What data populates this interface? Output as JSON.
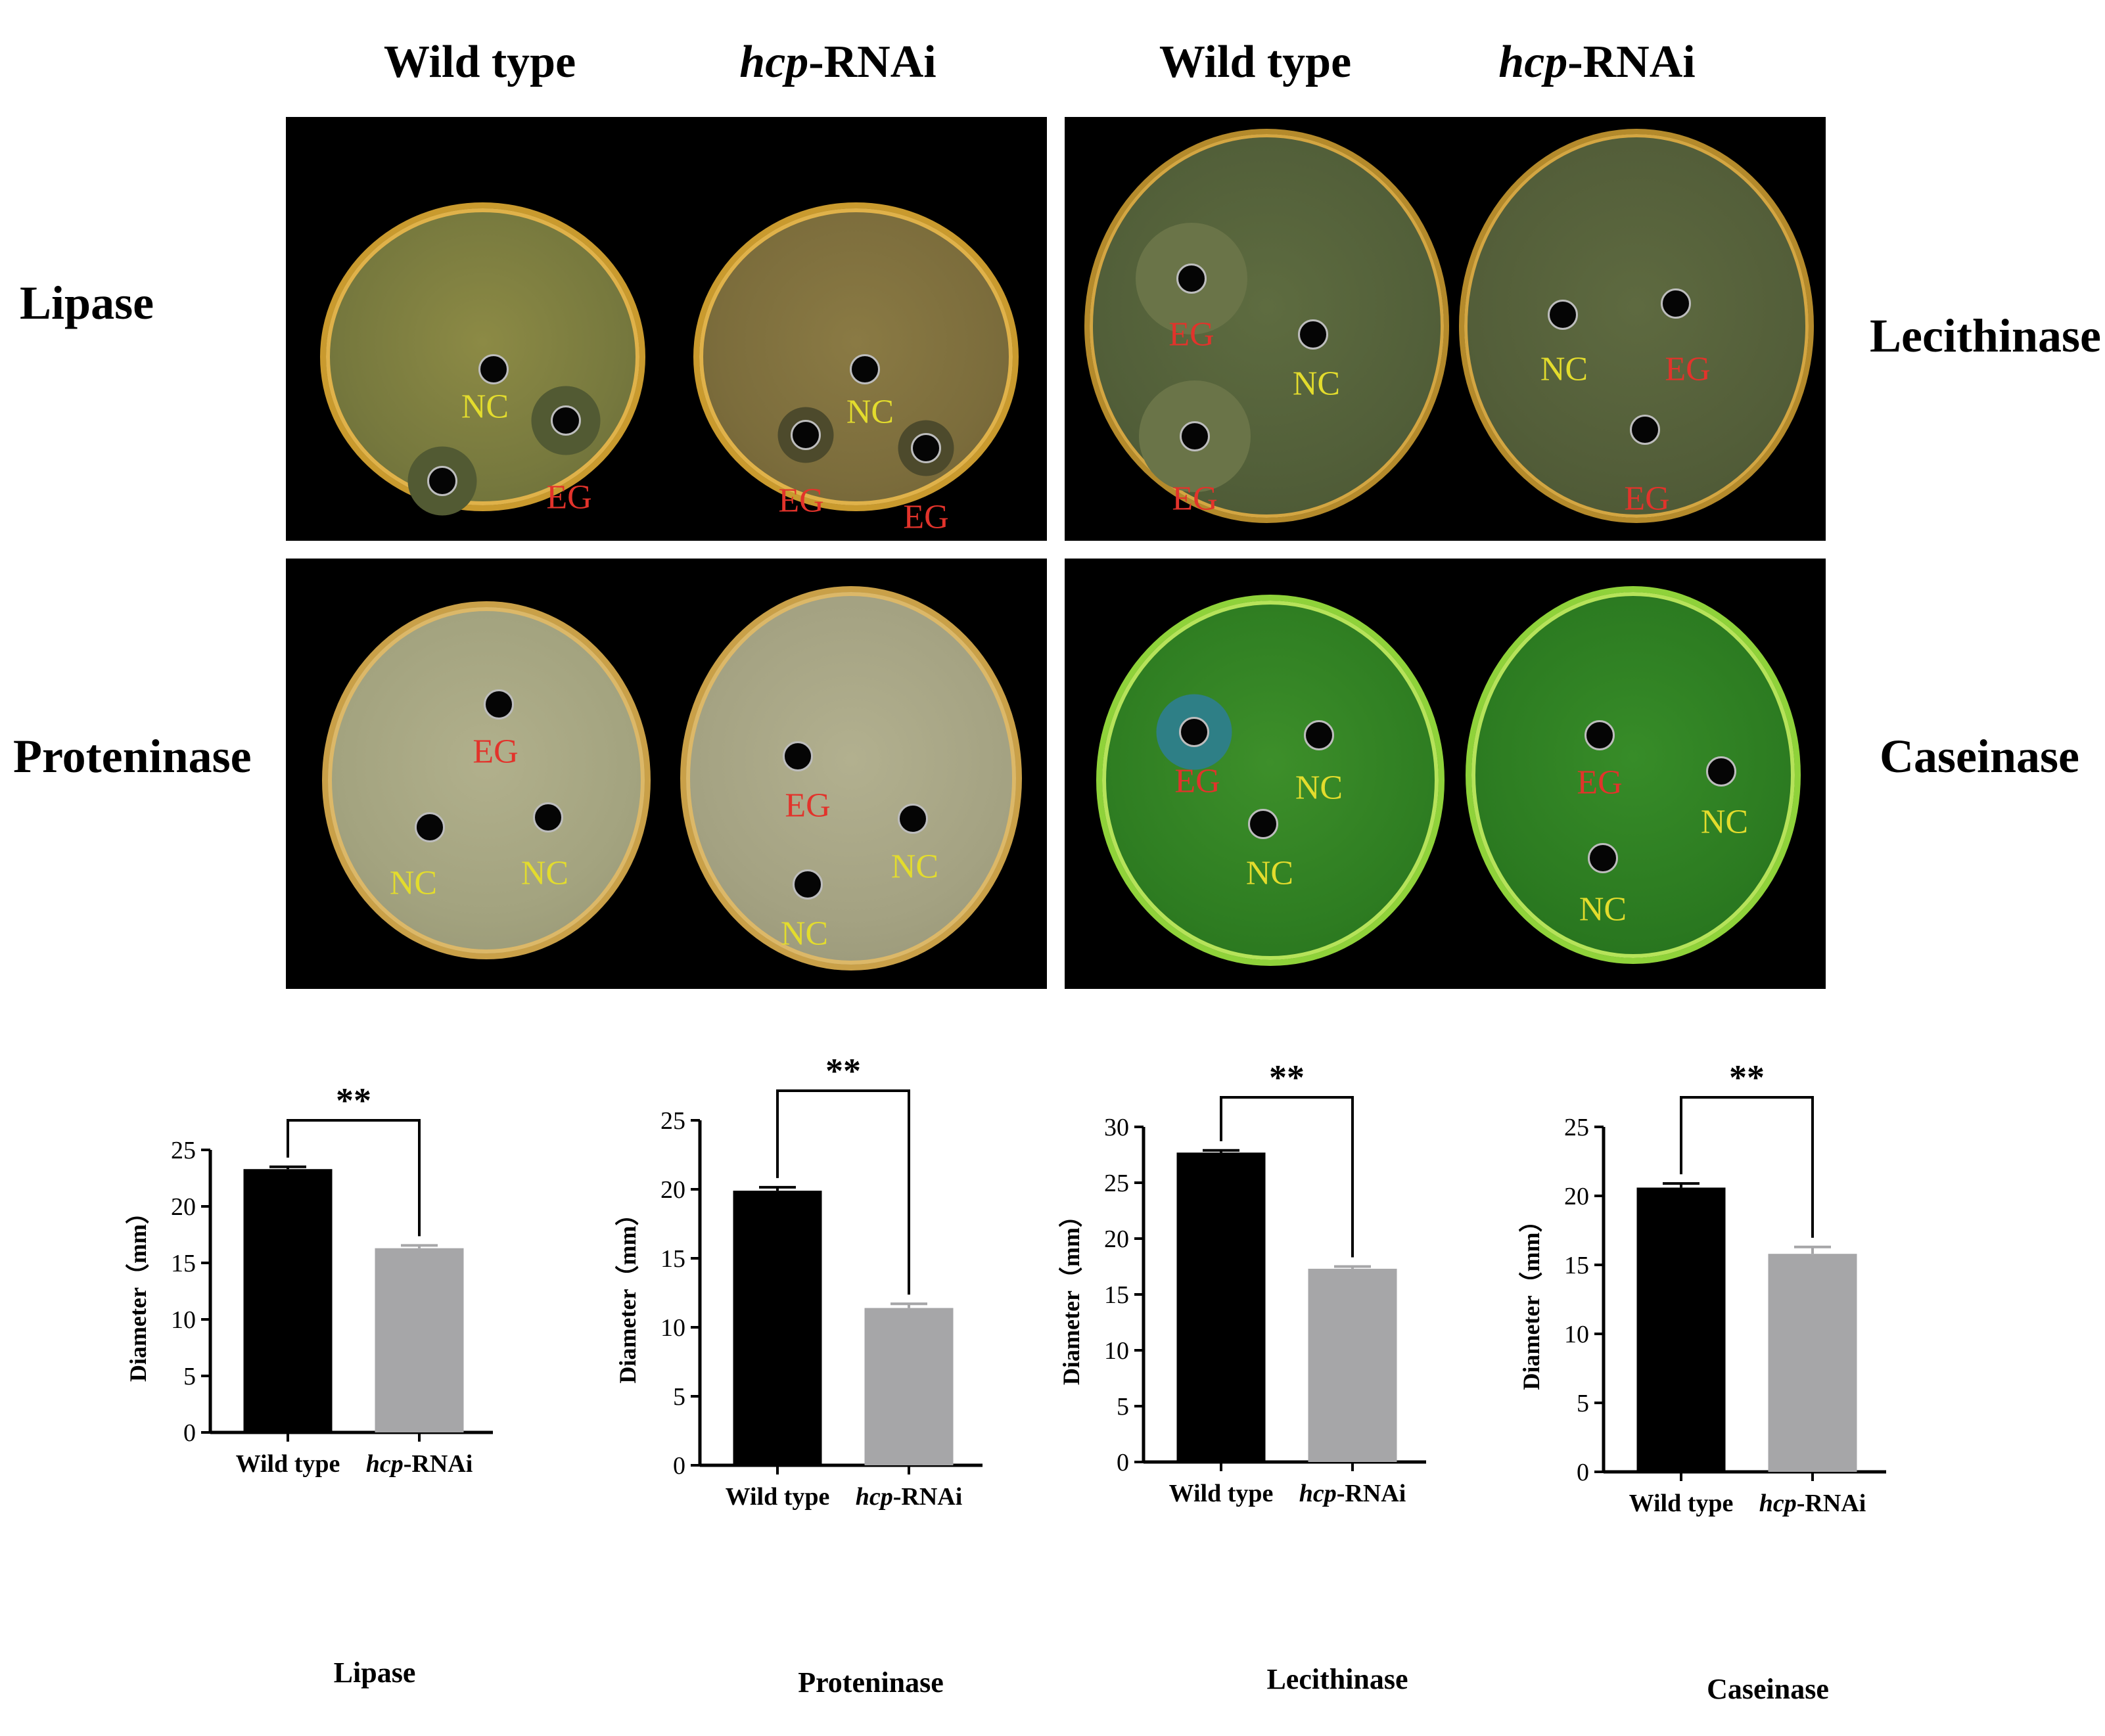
{
  "figure": {
    "column_headers": [
      {
        "italic": "",
        "text": "Wild type"
      },
      {
        "italic": "hcp",
        "text": "-RNAi"
      },
      {
        "italic": "",
        "text": "Wild type"
      },
      {
        "italic": "hcp",
        "text": "-RNAi"
      }
    ],
    "row_labels": {
      "lipase": "Lipase",
      "lecithinase": "Lecithinase",
      "proteninase": "Proteninase",
      "caseinase": "Caseinase"
    },
    "plate_labels": {
      "nc": "NC",
      "eg": "EG"
    },
    "colors": {
      "nc_label": "#e3dc2d",
      "eg_label": "#e2332b",
      "wild_type_bar": "#000000",
      "rnai_bar": "#a6a6a8"
    }
  },
  "chart_data": [
    {
      "type": "bar",
      "title": "Lipase",
      "ylabel": "Diameter（mm）",
      "categories": [
        "Wild type",
        "hcp-RNAi"
      ],
      "category_parts": [
        [
          "",
          "Wild type"
        ],
        [
          "hcp",
          "-RNAi"
        ]
      ],
      "values": [
        23.3,
        16.3
      ],
      "errors": [
        0.2,
        0.25
      ],
      "ylim": [
        0,
        25
      ],
      "yticks": [
        0,
        5,
        10,
        15,
        20,
        25
      ],
      "significance": "**"
    },
    {
      "type": "bar",
      "title": "Proteninase",
      "ylabel": "Diameter（mm）",
      "categories": [
        "Wild type",
        "hcp-RNAi"
      ],
      "category_parts": [
        [
          "",
          "Wild type"
        ],
        [
          "hcp",
          "-RNAi"
        ]
      ],
      "values": [
        19.9,
        11.4
      ],
      "errors": [
        0.25,
        0.3
      ],
      "ylim": [
        0,
        25
      ],
      "yticks": [
        0,
        5,
        10,
        15,
        20,
        25
      ],
      "significance": "**"
    },
    {
      "type": "bar",
      "title": "Lecithinase",
      "ylabel": "Diameter（mm）",
      "categories": [
        "Wild type",
        "hcp-RNAi"
      ],
      "category_parts": [
        [
          "",
          "Wild type"
        ],
        [
          "hcp",
          "-RNAi"
        ]
      ],
      "values": [
        27.7,
        17.3
      ],
      "errors": [
        0.2,
        0.2
      ],
      "ylim": [
        0,
        30
      ],
      "yticks": [
        0,
        5,
        10,
        15,
        20,
        25,
        30
      ],
      "significance": "**"
    },
    {
      "type": "bar",
      "title": "Caseinase",
      "ylabel": "Diameter（mm）",
      "categories": [
        "Wild type",
        "hcp-RNAi"
      ],
      "category_parts": [
        [
          "",
          "Wild type"
        ],
        [
          "hcp",
          "-RNAi"
        ]
      ],
      "values": [
        20.6,
        15.8
      ],
      "errors": [
        0.3,
        0.5
      ],
      "ylim": [
        0,
        25
      ],
      "yticks": [
        0,
        5,
        10,
        15,
        20,
        25
      ],
      "significance": "**"
    }
  ]
}
